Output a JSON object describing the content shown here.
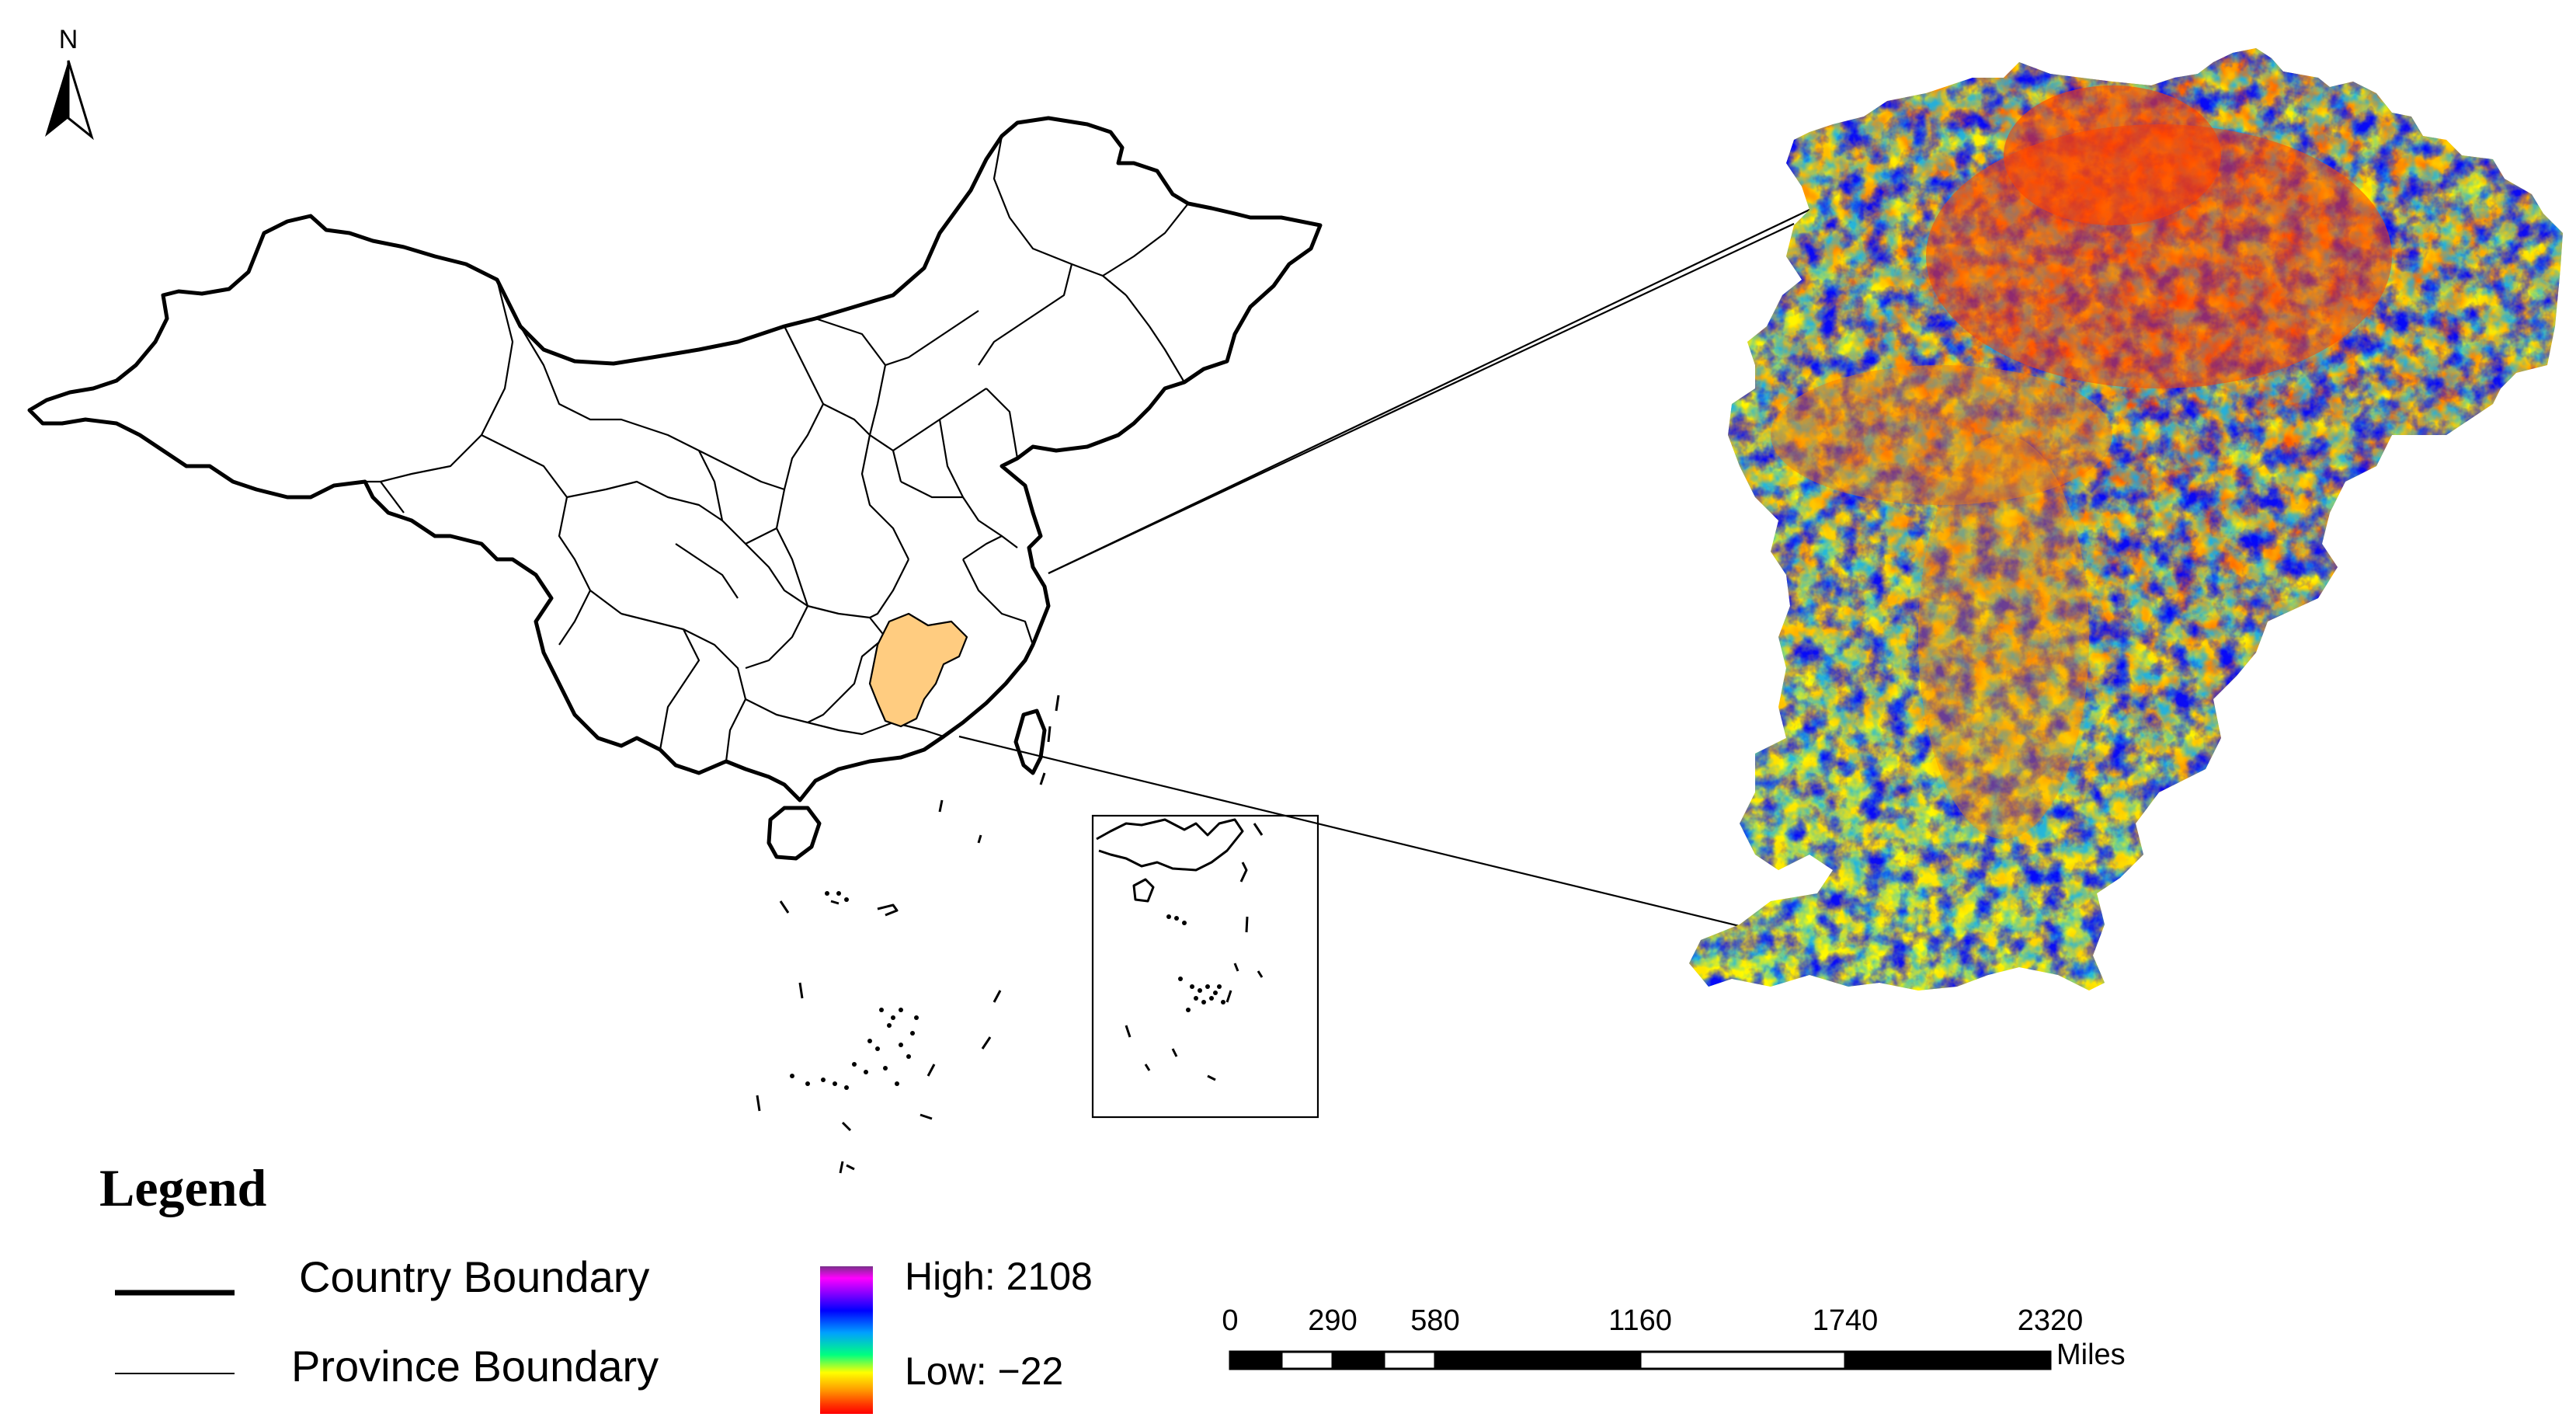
{
  "north_arrow": {
    "label": "N"
  },
  "legend": {
    "title": "Legend",
    "items": [
      {
        "label": "Country Boundary",
        "symbol": "thick-line"
      },
      {
        "label": "Province Boundary",
        "symbol": "thin-line"
      }
    ],
    "elevation": {
      "high_label": "High: 2108",
      "low_label": "Low: −22",
      "ramp_colors": [
        "#7a2f8a",
        "#ff00ff",
        "#0000ff",
        "#00a0ff",
        "#00ff80",
        "#ffff00",
        "#ff9900",
        "#ff3300",
        "#ff0000"
      ]
    }
  },
  "scale_bar": {
    "ticks": [
      "0",
      "290",
      "580",
      "1160",
      "1740",
      "2320"
    ],
    "unit": "Miles"
  },
  "highlight": {
    "region": "Jiangxi",
    "fill_color": "#ffcc80"
  },
  "dem_colors": {
    "high": "#0000ff",
    "mid_high": "#00b0ff",
    "mid": "#ffff00",
    "mid_low": "#ffa500",
    "low": "#ff4500"
  }
}
